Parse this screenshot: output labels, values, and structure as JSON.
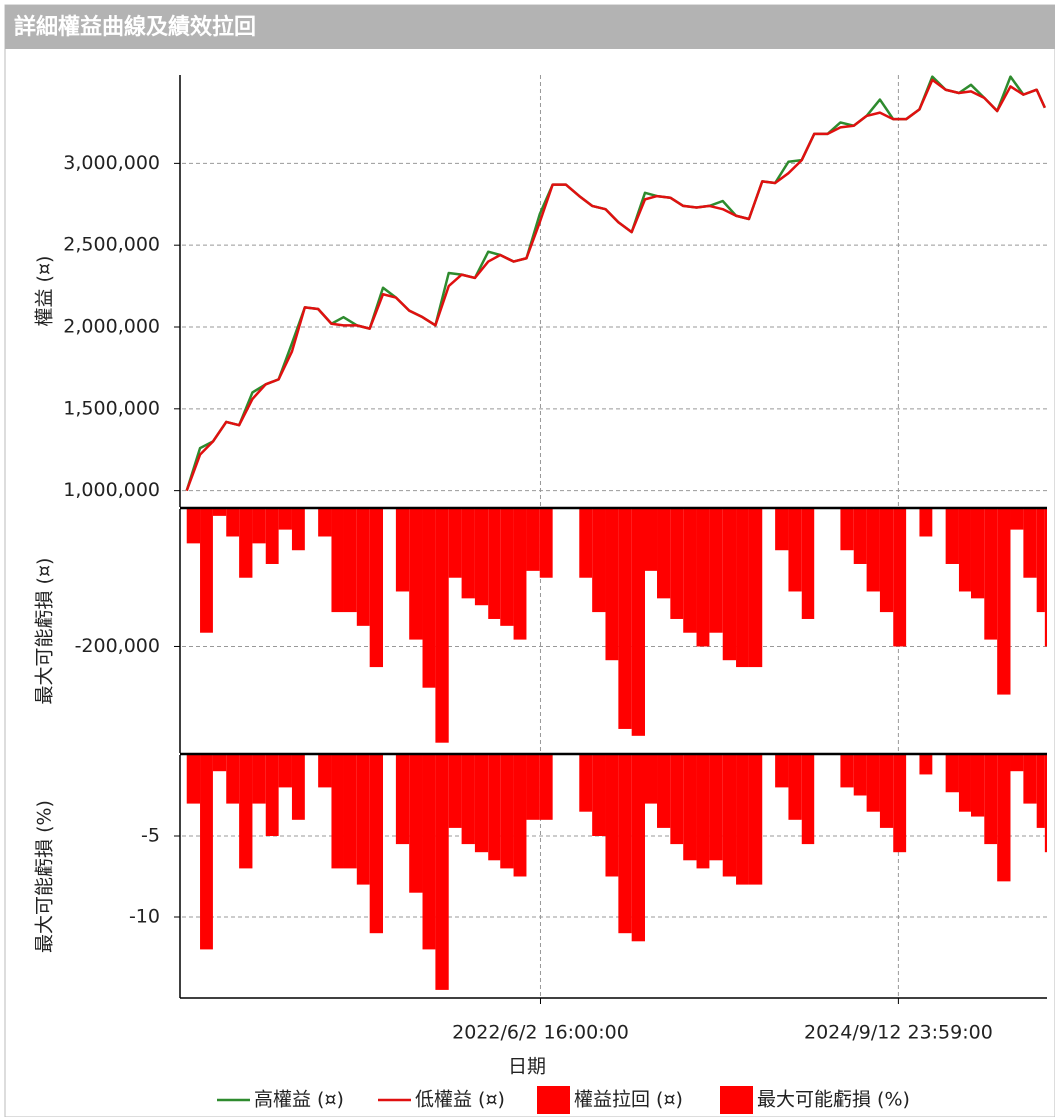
{
  "chart_data": {
    "type": "line",
    "title": "詳細權益曲線及績效拉回",
    "xlabel": "日期",
    "xlim": [
      "2020/2/19",
      "2025/8/25"
    ],
    "xticks": [
      "2022/6/2 16:00:00",
      "2024/9/12 23:59:00"
    ],
    "grid": true,
    "legend": "bottom",
    "x": [
      "2020/3/1",
      "2020/4/1",
      "2020/5/1",
      "2020/6/1",
      "2020/7/1",
      "2020/8/1",
      "2020/9/1",
      "2020/10/1",
      "2020/11/1",
      "2020/12/1",
      "2021/1/1",
      "2021/2/1",
      "2021/3/1",
      "2021/4/1",
      "2021/5/1",
      "2021/6/1",
      "2021/7/1",
      "2021/8/1",
      "2021/9/1",
      "2021/10/1",
      "2021/11/1",
      "2021/12/1",
      "2022/1/1",
      "2022/2/1",
      "2022/3/1",
      "2022/4/1",
      "2022/5/1",
      "2022/6/1",
      "2022/7/1",
      "2022/8/1",
      "2022/9/1",
      "2022/10/1",
      "2022/11/1",
      "2022/12/1",
      "2023/1/1",
      "2023/2/1",
      "2023/3/1",
      "2023/4/1",
      "2023/5/1",
      "2023/6/1",
      "2023/7/1",
      "2023/8/1",
      "2023/9/1",
      "2023/10/1",
      "2023/11/1",
      "2023/12/1",
      "2024/1/1",
      "2024/2/1",
      "2024/3/1",
      "2024/4/1",
      "2024/5/1",
      "2024/6/1",
      "2024/7/1",
      "2024/8/1",
      "2024/9/1",
      "2024/10/1",
      "2024/11/1",
      "2024/12/1",
      "2025/1/1",
      "2025/2/1",
      "2025/3/1",
      "2025/4/1",
      "2025/5/1",
      "2025/6/1",
      "2025/7/1",
      "2025/8/1",
      "2025/8/20"
    ],
    "panels": [
      {
        "type": "line",
        "ylabel": "權益 (¤)",
        "ylim": [
          900000,
          3540000
        ],
        "yticks": [
          {
            "value": 1000000,
            "label": "1,000,000"
          },
          {
            "value": 1500000,
            "label": "1,500,000"
          },
          {
            "value": 2000000,
            "label": "2,000,000"
          },
          {
            "value": 2500000,
            "label": "2,500,000"
          },
          {
            "value": 3000000,
            "label": "3,000,000"
          }
        ],
        "series": [
          {
            "name": "高權益 (¤)",
            "color": "#2e8b2e",
            "values": [
              1000000,
              1260000,
              1300000,
              1420000,
              1400000,
              1600000,
              1650000,
              1680000,
              1900000,
              2120000,
              2110000,
              2020000,
              2060000,
              2010000,
              1990000,
              2240000,
              2180000,
              2100000,
              2060000,
              2010000,
              2330000,
              2320000,
              2300000,
              2460000,
              2440000,
              2400000,
              2420000,
              2690000,
              2870000,
              2870000,
              2800000,
              2740000,
              2720000,
              2640000,
              2580000,
              2820000,
              2800000,
              2790000,
              2740000,
              2730000,
              2740000,
              2770000,
              2680000,
              2660000,
              2890000,
              2880000,
              3010000,
              3020000,
              3180000,
              3180000,
              3250000,
              3230000,
              3290000,
              3390000,
              3270000,
              3270000,
              3330000,
              3530000,
              3450000,
              3430000,
              3480000,
              3400000,
              3320000,
              3530000,
              3420000,
              3450000,
              3340000
            ]
          },
          {
            "name": "低權益 (¤)",
            "color": "#e01010",
            "values": [
              1000000,
              1220000,
              1300000,
              1420000,
              1400000,
              1560000,
              1650000,
              1680000,
              1850000,
              2120000,
              2110000,
              2020000,
              2010000,
              2010000,
              1990000,
              2200000,
              2180000,
              2100000,
              2060000,
              2010000,
              2250000,
              2320000,
              2300000,
              2400000,
              2440000,
              2400000,
              2420000,
              2640000,
              2870000,
              2870000,
              2800000,
              2740000,
              2720000,
              2640000,
              2580000,
              2780000,
              2800000,
              2790000,
              2740000,
              2730000,
              2740000,
              2720000,
              2680000,
              2660000,
              2890000,
              2880000,
              2940000,
              3020000,
              3180000,
              3180000,
              3220000,
              3230000,
              3290000,
              3310000,
              3270000,
              3270000,
              3330000,
              3510000,
              3450000,
              3430000,
              3440000,
              3400000,
              3320000,
              3470000,
              3420000,
              3450000,
              3340000
            ]
          }
        ]
      },
      {
        "type": "area",
        "ylabel": "最大可能虧損 (¤)",
        "ylim": [
          -355000,
          0
        ],
        "yticks": [
          {
            "value": -200000,
            "label": "-200,000"
          }
        ],
        "series": [
          {
            "name": "權益拉回 (¤)",
            "color": "#ff0000",
            "values": [
              -50000,
              -180000,
              -10000,
              -40000,
              -100000,
              -50000,
              -80000,
              -30000,
              -60000,
              0,
              -40000,
              -150000,
              -150000,
              -170000,
              -230000,
              0,
              -120000,
              -190000,
              -260000,
              -340000,
              -100000,
              -130000,
              -140000,
              -160000,
              -170000,
              -190000,
              -90000,
              -100000,
              0,
              0,
              -100000,
              -150000,
              -220000,
              -320000,
              -330000,
              -90000,
              -130000,
              -160000,
              -180000,
              -200000,
              -180000,
              -220000,
              -230000,
              -230000,
              0,
              -60000,
              -120000,
              -160000,
              0,
              0,
              -60000,
              -80000,
              -120000,
              -150000,
              -200000,
              0,
              -40000,
              0,
              -80000,
              -120000,
              -130000,
              -190000,
              -270000,
              -30000,
              -100000,
              -150000,
              -200000
            ]
          }
        ]
      },
      {
        "type": "area",
        "ylabel": "最大可能虧損 (%)",
        "ylim": [
          -15,
          0
        ],
        "yticks": [
          -5,
          -10
        ],
        "series": [
          {
            "name": "最大可能虧損 (%)",
            "color": "#ff0000",
            "values": [
              -3,
              -12,
              -1,
              -3,
              -7,
              -3,
              -5,
              -2,
              -4,
              0,
              -2,
              -7,
              -7,
              -8,
              -11,
              0,
              -5.5,
              -8.5,
              -12,
              -14.5,
              -4.5,
              -5.5,
              -6,
              -6.5,
              -7,
              -7.5,
              -4,
              -4,
              0,
              0,
              -3.5,
              -5,
              -7.5,
              -11,
              -11.5,
              -3,
              -4.5,
              -5.5,
              -6.5,
              -7,
              -6.5,
              -7.5,
              -8,
              -8,
              0,
              -2,
              -4,
              -5.5,
              0,
              0,
              -2,
              -2.5,
              -3.5,
              -4.5,
              -6,
              0,
              -1.2,
              0,
              -2.3,
              -3.5,
              -3.8,
              -5.5,
              -7.8,
              -1,
              -3,
              -4.5,
              -6
            ]
          }
        ]
      }
    ]
  }
}
